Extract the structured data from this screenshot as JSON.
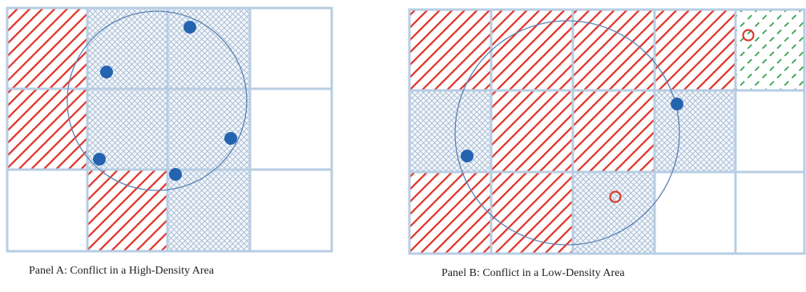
{
  "colors": {
    "grid_line": "#b7cde3",
    "red_hatch": "#e0332a",
    "blue_crosshatch": "#9fb6cf",
    "green_hatch": "#2f9e4a",
    "point_fill": "#2463b0",
    "circle_stroke": "#5b83b4",
    "open_point": "#d93b2f"
  },
  "legend_semantics": {
    "red_hatch": "conflict cell",
    "blue_crosshatch": "neighborhood cell",
    "green_hatch": "other cell",
    "filled_point": "data point",
    "open_point": "query point"
  },
  "panels": [
    {
      "id": "A",
      "caption": "Panel A: Conflict in a High-Density Area",
      "grid": {
        "rows": 3,
        "cols": 4
      },
      "cells": [
        [
          "red",
          "blue",
          "blue",
          "white"
        ],
        [
          "red",
          "blue",
          "blue",
          "white"
        ],
        [
          "white",
          "red",
          "blue",
          "white"
        ]
      ],
      "filled_points": 5,
      "open_points": 0
    },
    {
      "id": "B",
      "caption": "Panel B: Conflict in a Low-Density Area",
      "grid": {
        "rows": 3,
        "cols": 5
      },
      "cells": [
        [
          "red",
          "red",
          "red",
          "red",
          "green"
        ],
        [
          "blue",
          "red",
          "red",
          "blue",
          "white"
        ],
        [
          "red",
          "red",
          "blue",
          "white",
          "white"
        ]
      ],
      "filled_points": 2,
      "open_points": 2
    }
  ]
}
